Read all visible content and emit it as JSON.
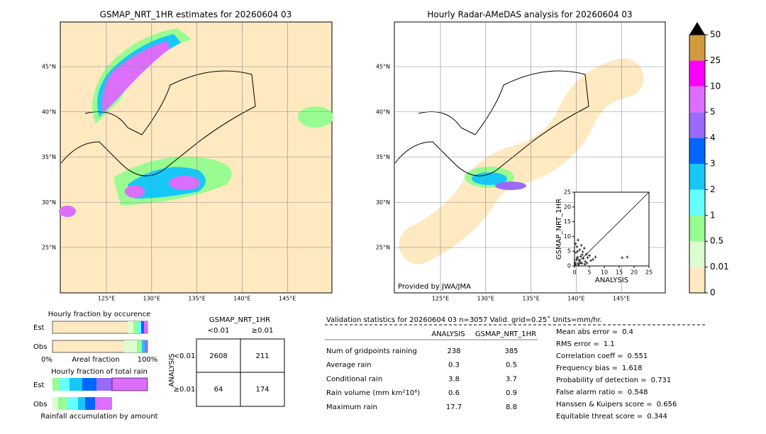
{
  "maps": [
    {
      "title": "GSMAP_NRT_1HR estimates for 20260604 03"
    },
    {
      "title": "Hourly Radar-AMeDAS analysis for 20260604 03",
      "credit": "Provided by JWA/JMA"
    }
  ],
  "lat_labels": [
    "45°N",
    "40°N",
    "35°N",
    "30°N",
    "25°N"
  ],
  "lon_labels": [
    "125°E",
    "130°E",
    "135°E",
    "140°E",
    "145°E"
  ],
  "colorbar": {
    "ticks": [
      0,
      0.01,
      0.5,
      1,
      2,
      3,
      4,
      5,
      10,
      25,
      50
    ],
    "colors": [
      "#fee9c1",
      "#ddfdd0",
      "#98fc90",
      "#66ffff",
      "#17c8f7",
      "#0066ff",
      "#9a6af8",
      "#dc6efc",
      "#ff00ff",
      "#d09b3e"
    ]
  },
  "scatter": {
    "type": "scatter",
    "xlabel": "ANALYSIS",
    "ylabel": "GSMAP_NRT_1HR",
    "xlim": [
      0,
      25
    ],
    "ylim": [
      0,
      25
    ],
    "xticks": [
      0,
      5,
      10,
      15,
      20,
      25
    ],
    "yticks": [
      0,
      5,
      10,
      15,
      20,
      25
    ],
    "x": [
      0.2,
      0.5,
      0.8,
      1.0,
      1.2,
      1.5,
      1.8,
      2.0,
      2.3,
      2.6,
      3.0,
      3.3,
      3.6,
      4.0,
      4.4,
      5.0,
      5.5,
      6.2,
      7.0,
      0.3,
      0.6,
      1.1,
      1.6,
      2.1,
      2.8,
      3.5,
      4.2,
      0.4,
      1.3,
      16.0,
      17.7,
      0.9,
      2.5
    ],
    "y": [
      1.0,
      4.5,
      6.5,
      3.0,
      8.8,
      2.0,
      5.5,
      1.2,
      7.0,
      3.8,
      2.5,
      6.0,
      1.5,
      4.0,
      2.8,
      3.5,
      1.8,
      2.2,
      3.0,
      0.5,
      2.0,
      5.0,
      0.8,
      3.2,
      4.8,
      0.6,
      1.0,
      7.5,
      0.3,
      2.8,
      3.0,
      2.6,
      0.9
    ]
  },
  "fraction": {
    "occurrence_title": "Hourly fraction by occurence",
    "total_title": "Hourly fraction of total rain",
    "est": "Est",
    "obs": "Obs",
    "axis_min": "0%",
    "axis_label": "Areal fraction",
    "axis_max": "100%",
    "footer": "Rainfall accumulation by amount"
  },
  "contingency": {
    "title": "GSMAP_NRT_1HR",
    "col_headers": [
      "<0.01",
      "≥0.01"
    ],
    "row_title": "ANALYSIS",
    "row_headers": [
      "<0.01",
      "≥0.01"
    ],
    "cells": [
      [
        2608,
        211
      ],
      [
        64,
        174
      ]
    ]
  },
  "validation": {
    "heading": "Validation statistics for 20260604 03  n=3057 Valid. grid=0.25˚ Units=mm/hr.",
    "columns": [
      "ANALYSIS",
      "GSMAP_NRT_1HR"
    ],
    "rows": [
      {
        "name": "Num of gridpoints raining",
        "values": [
          238,
          385
        ]
      },
      {
        "name": "Average rain",
        "values": [
          0.3,
          0.5
        ]
      },
      {
        "name": "Conditional rain",
        "values": [
          3.8,
          3.7
        ]
      },
      {
        "name": "Rain volume (mm km²10⁶)",
        "values": [
          0.6,
          0.9
        ]
      },
      {
        "name": "Maximum rain",
        "values": [
          17.7,
          8.8
        ]
      }
    ],
    "scores": [
      {
        "label": "Mean abs error =",
        "value": 0.4
      },
      {
        "label": "RMS error =",
        "value": 1.1
      },
      {
        "label": "Correlation coeff =",
        "value": 0.551
      },
      {
        "label": "Frequency bias =",
        "value": 1.618
      },
      {
        "label": "Probability of detection =",
        "value": 0.731
      },
      {
        "label": "False alarm ratio =",
        "value": 0.548
      },
      {
        "label": "Hanssen & Kuipers score =",
        "value": 0.656
      },
      {
        "label": "Equitable threat score =",
        "value": 0.344
      }
    ]
  }
}
